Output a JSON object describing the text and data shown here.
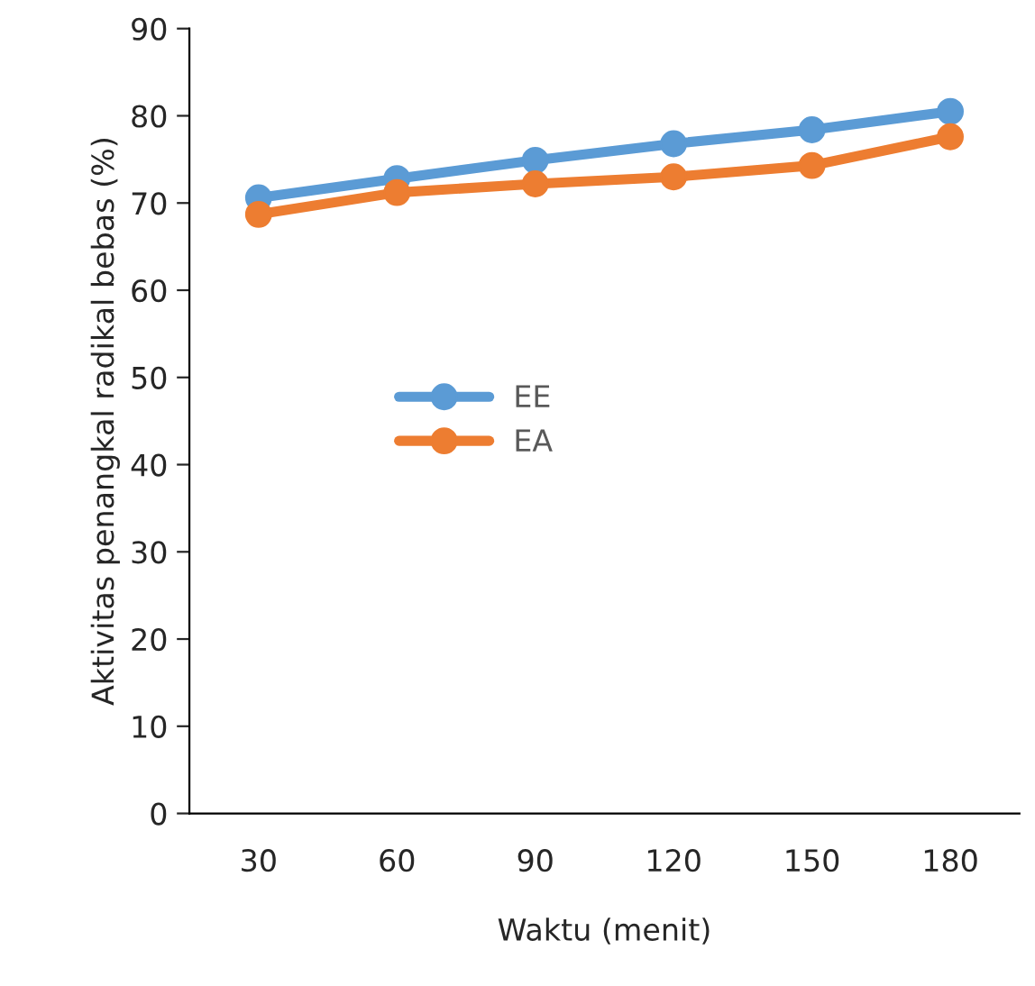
{
  "chart_data": {
    "type": "line",
    "xlabel": "Waktu (menit)",
    "ylabel": "Aktivitas penangkal radikal bebas (%)",
    "categories": [
      "30",
      "60",
      "90",
      "120",
      "150",
      "180"
    ],
    "series": [
      {
        "name": "EE",
        "color": "#5b9bd5",
        "values": [
          70.6,
          72.8,
          74.9,
          76.8,
          78.4,
          80.5
        ]
      },
      {
        "name": "EA",
        "color": "#ed7d31",
        "values": [
          68.7,
          71.2,
          72.2,
          73.0,
          74.3,
          77.6
        ]
      }
    ],
    "ylim": [
      0,
      90
    ],
    "yticks": [
      0,
      10,
      20,
      30,
      40,
      50,
      60,
      70,
      80,
      90
    ],
    "grid": false,
    "legend": "center left",
    "marker": "circle",
    "line_style": "solid"
  }
}
